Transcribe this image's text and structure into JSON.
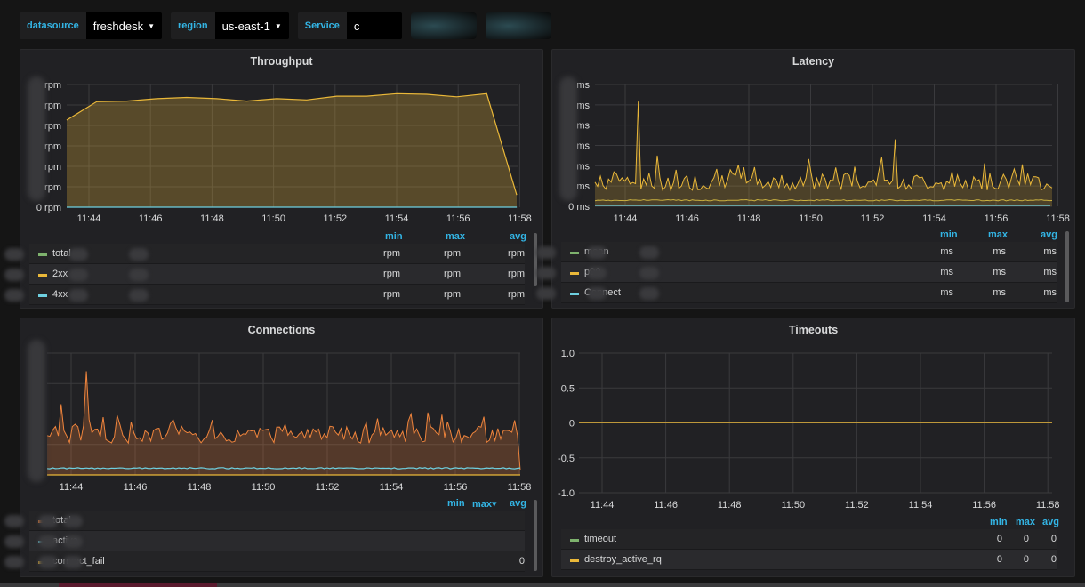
{
  "variables": [
    {
      "label": "datasource",
      "value": "freshdesk"
    },
    {
      "label": "region",
      "value": "us-east-1"
    },
    {
      "label": "Service",
      "value": "c"
    }
  ],
  "x_ticks": [
    "11:44",
    "11:46",
    "11:48",
    "11:50",
    "11:52",
    "11:54",
    "11:56",
    "11:58"
  ],
  "panels": {
    "throughput": {
      "title": "Throughput",
      "y_labels": [
        "rpm",
        "rpm",
        "rpm",
        "rpm",
        "rpm",
        "rpm",
        "0 rpm"
      ],
      "legend_headers": [
        "min",
        "max",
        "avg"
      ],
      "legend": [
        {
          "name": "total",
          "color": "#7eb26d",
          "min": "rpm",
          "max": "rpm",
          "avg": "rpm"
        },
        {
          "name": "2xx",
          "color": "#eab839",
          "min": "rpm",
          "max": "rpm",
          "avg": "rpm"
        },
        {
          "name": "4xx",
          "color": "#6ed0e0",
          "min": "rpm",
          "max": "rpm",
          "avg": "rpm"
        }
      ]
    },
    "latency": {
      "title": "Latency",
      "y_labels": [
        "ms",
        "ms",
        "ms",
        "ms",
        "ms",
        "ms",
        "0 ms"
      ],
      "legend_headers": [
        "min",
        "max",
        "avg"
      ],
      "legend": [
        {
          "name": "mean",
          "color": "#7eb26d",
          "min": "ms",
          "max": "ms",
          "avg": "ms"
        },
        {
          "name": "p90",
          "color": "#eab839",
          "min": "ms",
          "max": "ms",
          "avg": "ms"
        },
        {
          "name": "Connect",
          "color": "#6ed0e0",
          "min": "ms",
          "max": "ms",
          "avg": "ms"
        }
      ]
    },
    "connections": {
      "title": "Connections",
      "legend_headers": [
        "min",
        "max▾",
        "avg"
      ],
      "legend": [
        {
          "name": "total",
          "color": "#ef843c",
          "min": "",
          "max": "",
          "avg": ""
        },
        {
          "name": "active",
          "color": "#6ed0e0",
          "min": "",
          "max": "",
          "avg": ""
        },
        {
          "name": "connect_fail",
          "color": "#eab839",
          "min": "",
          "max": "",
          "avg": "0"
        }
      ]
    },
    "timeouts": {
      "title": "Timeouts",
      "y_labels": [
        "1.0",
        "0.5",
        "0",
        "-0.5",
        "-1.0"
      ],
      "legend_headers": [
        "min",
        "max",
        "avg"
      ],
      "legend": [
        {
          "name": "timeout",
          "color": "#7eb26d",
          "min": "0",
          "max": "0",
          "avg": "0"
        },
        {
          "name": "destroy_active_rq",
          "color": "#eab839",
          "min": "0",
          "max": "0",
          "avg": "0"
        }
      ]
    }
  },
  "chart_data": [
    {
      "type": "area",
      "title": "Throughput",
      "x": [
        "11:43",
        "11:44",
        "11:45",
        "11:46",
        "11:47",
        "11:48",
        "11:49",
        "11:50",
        "11:51",
        "11:52",
        "11:53",
        "11:54",
        "11:55",
        "11:56",
        "11:57",
        "11:58"
      ],
      "series": [
        {
          "name": "2xx",
          "values": [
            0.71,
            0.86,
            0.865,
            0.885,
            0.895,
            0.885,
            0.865,
            0.885,
            0.875,
            0.905,
            0.905,
            0.925,
            0.92,
            0.9,
            0.925,
            0.1
          ]
        }
      ],
      "ylabel": "rpm"
    },
    {
      "type": "line",
      "title": "Latency",
      "x_range": [
        "11:43",
        "11:58"
      ],
      "series": [
        {
          "name": "p90",
          "note": "spiky, baseline ~0.2 of axis, peak ~0.9 near 11:44"
        },
        {
          "name": "mean"
        },
        {
          "name": "Connect"
        }
      ],
      "ylabel": "ms"
    },
    {
      "type": "area",
      "title": "Connections",
      "series": [
        {
          "name": "total"
        },
        {
          "name": "active"
        },
        {
          "name": "connect_fail"
        }
      ]
    },
    {
      "type": "line",
      "title": "Timeouts",
      "ylim": [
        -1.0,
        1.0
      ],
      "series": [
        {
          "name": "timeout",
          "values": [
            0
          ]
        },
        {
          "name": "destroy_active_rq",
          "values": [
            0
          ]
        }
      ]
    }
  ]
}
